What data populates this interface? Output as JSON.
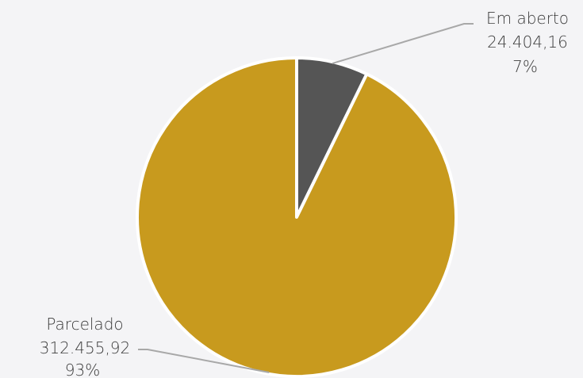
{
  "chart_data": {
    "type": "pie",
    "title": "",
    "start_angle_deg": 0,
    "direction": "clockwise",
    "slices": [
      {
        "label": "Em aberto",
        "value": 24404.16,
        "value_label": "24.404,16",
        "percent_label": "7%",
        "color": "#555555"
      },
      {
        "label": "Parcelado",
        "value": 312455.92,
        "value_label": "312.455,92",
        "percent_label": "93%",
        "color": "#C89A1E"
      }
    ]
  },
  "colors": {
    "background": "#f4f4f6",
    "leader_line": "#a8a8a8",
    "label_text": "#3c3c3c",
    "slice_border": "#ffffff"
  }
}
